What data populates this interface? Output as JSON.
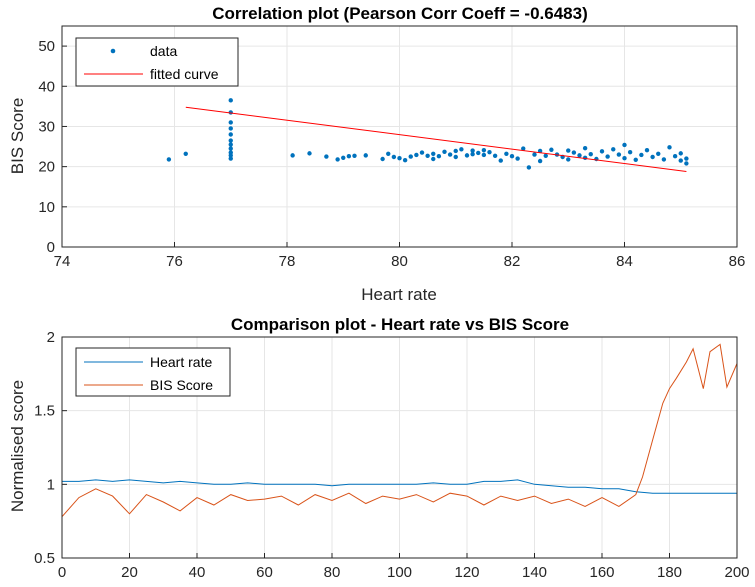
{
  "chart_data": [
    {
      "type": "scatter",
      "title": "Correlation plot (Pearson Corr Coeff = -0.6483)",
      "xlabel": "Heart rate",
      "ylabel": "BIS Score",
      "xlim": [
        74,
        86
      ],
      "ylim": [
        0,
        55
      ],
      "xticks": [
        "74",
        "76",
        "78",
        "80",
        "82",
        "84",
        "86"
      ],
      "yticks": [
        "0",
        "10",
        "20",
        "30",
        "40",
        "50"
      ],
      "grid": true,
      "legend_position": "top-left",
      "series": [
        {
          "name": "data",
          "kind": "points",
          "color": "#0072BD",
          "x": [
            75.9,
            76.2,
            77.0,
            77.0,
            77.0,
            77.0,
            77.0,
            77.0,
            77.0,
            77.0,
            77.0,
            77.0,
            77.0,
            78.1,
            78.4,
            78.7,
            78.9,
            79.0,
            79.1,
            79.2,
            79.4,
            79.7,
            79.8,
            79.9,
            80.0,
            80.1,
            80.2,
            80.3,
            80.4,
            80.5,
            80.6,
            80.6,
            80.7,
            80.8,
            80.9,
            81.0,
            81.0,
            81.1,
            81.2,
            81.3,
            81.3,
            81.4,
            81.5,
            81.5,
            81.6,
            81.7,
            81.8,
            81.9,
            82.0,
            82.1,
            82.2,
            82.3,
            82.4,
            82.5,
            82.5,
            82.6,
            82.7,
            82.8,
            82.9,
            83.0,
            83.0,
            83.1,
            83.2,
            83.3,
            83.3,
            83.4,
            83.5,
            83.6,
            83.7,
            83.8,
            83.9,
            84.0,
            84.0,
            84.1,
            84.2,
            84.3,
            84.4,
            84.5,
            84.6,
            84.7,
            84.8,
            84.9,
            85.0,
            85.0,
            85.1,
            85.1
          ],
          "y": [
            21.8,
            23.2,
            36.5,
            33.5,
            31.0,
            29.5,
            28.0,
            26.5,
            25.5,
            24.5,
            23.5,
            22.8,
            22.0,
            22.8,
            23.3,
            22.5,
            21.8,
            22.2,
            22.6,
            22.7,
            22.8,
            21.9,
            23.2,
            22.4,
            22.1,
            21.6,
            22.5,
            22.9,
            23.5,
            22.7,
            23.2,
            21.9,
            22.6,
            23.7,
            23.0,
            22.4,
            23.9,
            24.3,
            22.8,
            24.0,
            23.1,
            23.4,
            24.1,
            22.9,
            23.6,
            22.7,
            21.5,
            23.2,
            22.6,
            22.0,
            24.5,
            19.8,
            23.0,
            23.9,
            21.4,
            22.7,
            24.2,
            23.0,
            22.4,
            24.0,
            21.8,
            23.5,
            22.8,
            24.6,
            22.2,
            23.1,
            21.9,
            23.8,
            22.5,
            24.3,
            23.0,
            22.1,
            25.4,
            23.6,
            21.7,
            22.9,
            24.1,
            22.4,
            23.2,
            21.8,
            24.8,
            22.6,
            23.3,
            21.5,
            22.0,
            20.8
          ]
        },
        {
          "name": "fitted curve",
          "kind": "line",
          "color": "#FF0000",
          "x": [
            76.2,
            85.1
          ],
          "y": [
            34.8,
            18.8
          ]
        }
      ]
    },
    {
      "type": "line",
      "title": "Comparison plot - Heart rate vs BIS Score",
      "xlabel": "",
      "ylabel": "Normalised score",
      "xlim": [
        0,
        200
      ],
      "ylim": [
        0.5,
        2
      ],
      "xticks": [
        "0",
        "20",
        "40",
        "60",
        "80",
        "100",
        "120",
        "140",
        "160",
        "180",
        "200"
      ],
      "yticks": [
        "0.5",
        "1",
        "1.5",
        "2"
      ],
      "grid": true,
      "legend_position": "top-left",
      "series": [
        {
          "name": "Heart rate",
          "color": "#0072BD",
          "x": [
            0,
            5,
            10,
            15,
            20,
            25,
            30,
            35,
            40,
            45,
            50,
            55,
            60,
            65,
            70,
            75,
            80,
            85,
            90,
            95,
            100,
            105,
            110,
            115,
            120,
            125,
            130,
            135,
            140,
            145,
            150,
            155,
            160,
            165,
            170,
            175,
            180,
            185,
            190,
            195,
            200
          ],
          "values": [
            1.02,
            1.02,
            1.03,
            1.02,
            1.03,
            1.02,
            1.01,
            1.02,
            1.01,
            1.0,
            1.0,
            1.01,
            1.0,
            1.0,
            1.0,
            1.0,
            0.99,
            1.0,
            1.0,
            1.0,
            1.0,
            1.0,
            1.01,
            1.0,
            1.0,
            1.02,
            1.02,
            1.03,
            1.0,
            0.99,
            0.98,
            0.98,
            0.97,
            0.97,
            0.95,
            0.94,
            0.94,
            0.94,
            0.94,
            0.94,
            0.94
          ]
        },
        {
          "name": "BIS Score",
          "color": "#D95319",
          "x": [
            0,
            5,
            10,
            15,
            20,
            25,
            30,
            35,
            40,
            45,
            50,
            55,
            60,
            65,
            70,
            75,
            80,
            85,
            90,
            95,
            100,
            105,
            110,
            115,
            120,
            125,
            130,
            135,
            140,
            145,
            150,
            155,
            160,
            165,
            170,
            172,
            175,
            178,
            180,
            182,
            185,
            187,
            190,
            192,
            195,
            197,
            200
          ],
          "values": [
            0.78,
            0.91,
            0.97,
            0.92,
            0.8,
            0.93,
            0.88,
            0.82,
            0.91,
            0.86,
            0.93,
            0.89,
            0.9,
            0.92,
            0.86,
            0.93,
            0.89,
            0.94,
            0.87,
            0.92,
            0.9,
            0.93,
            0.88,
            0.94,
            0.92,
            0.86,
            0.92,
            0.89,
            0.92,
            0.87,
            0.9,
            0.85,
            0.91,
            0.85,
            0.93,
            1.05,
            1.3,
            1.55,
            1.65,
            1.72,
            1.83,
            1.92,
            1.65,
            1.9,
            1.95,
            1.66,
            1.82
          ]
        }
      ]
    }
  ]
}
